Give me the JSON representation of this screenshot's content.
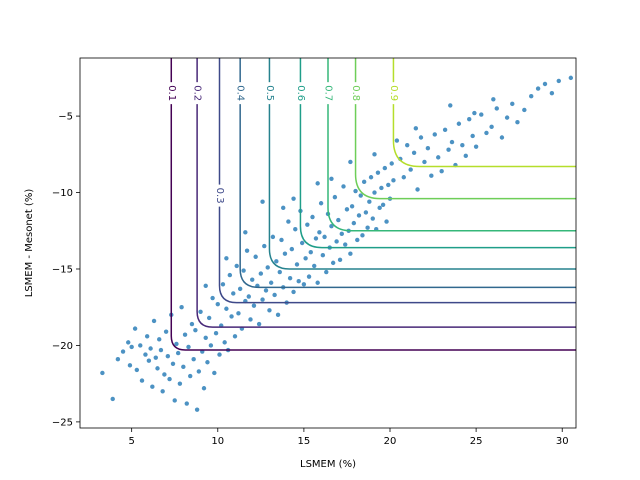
{
  "chart_data": {
    "type": "scatter",
    "xlabel": "LSMEM (%)",
    "ylabel": "LSMEM - Mesonet (%)",
    "xlim": [
      2.0,
      30.8
    ],
    "ylim": [
      -25.4,
      -1.2
    ],
    "xticks": [
      5,
      10,
      15,
      20,
      25,
      30
    ],
    "yticks": [
      -25,
      -20,
      -15,
      -10,
      -5
    ],
    "point_color": "#1f77b4",
    "contours": [
      {
        "level": "0.1",
        "color": "#440154",
        "x_asym": 7.3,
        "y_asym": -20.3,
        "label_y": -3.5
      },
      {
        "level": "0.2",
        "color": "#482878",
        "x_asym": 8.8,
        "y_asym": -18.8,
        "label_y": -3.5
      },
      {
        "level": "0.3",
        "color": "#3e4989",
        "x_asym": 10.1,
        "y_asym": -17.2,
        "label_y": -10.2
      },
      {
        "level": "0.4",
        "color": "#31688e",
        "x_asym": 11.3,
        "y_asym": -16.2,
        "label_y": -3.5
      },
      {
        "level": "0.5",
        "color": "#26828e",
        "x_asym": 13.0,
        "y_asym": -15.0,
        "label_y": -3.5
      },
      {
        "level": "0.6",
        "color": "#1f9e89",
        "x_asym": 14.8,
        "y_asym": -13.6,
        "label_y": -3.5
      },
      {
        "level": "0.7",
        "color": "#35b779",
        "x_asym": 16.4,
        "y_asym": -12.5,
        "label_y": -3.5
      },
      {
        "level": "0.8",
        "color": "#6ece58",
        "x_asym": 18.0,
        "y_asym": -10.4,
        "label_y": -3.5
      },
      {
        "level": "0.9",
        "color": "#b5de2b",
        "x_asym": 20.2,
        "y_asym": -8.3,
        "label_y": -3.5
      }
    ],
    "points": [
      [
        3.3,
        -21.8
      ],
      [
        3.9,
        -23.5
      ],
      [
        4.2,
        -20.9
      ],
      [
        4.5,
        -20.4
      ],
      [
        4.8,
        -19.8
      ],
      [
        4.9,
        -21.3
      ],
      [
        5.0,
        -20.1
      ],
      [
        5.2,
        -18.9
      ],
      [
        5.3,
        -21.6
      ],
      [
        5.5,
        -20.0
      ],
      [
        5.6,
        -22.3
      ],
      [
        5.8,
        -20.6
      ],
      [
        5.9,
        -19.4
      ],
      [
        6.0,
        -21.0
      ],
      [
        6.1,
        -20.2
      ],
      [
        6.2,
        -22.7
      ],
      [
        6.3,
        -18.4
      ],
      [
        6.4,
        -20.8
      ],
      [
        6.5,
        -21.5
      ],
      [
        6.6,
        -19.6
      ],
      [
        6.7,
        -20.3
      ],
      [
        6.8,
        -23.0
      ],
      [
        6.9,
        -21.9
      ],
      [
        7.0,
        -19.1
      ],
      [
        7.1,
        -20.7
      ],
      [
        7.2,
        -22.2
      ],
      [
        7.3,
        -18.0
      ],
      [
        7.4,
        -21.2
      ],
      [
        7.5,
        -23.6
      ],
      [
        7.6,
        -19.9
      ],
      [
        7.7,
        -20.5
      ],
      [
        7.8,
        -22.5
      ],
      [
        7.9,
        -17.5
      ],
      [
        8.0,
        -21.4
      ],
      [
        8.1,
        -19.3
      ],
      [
        8.2,
        -23.8
      ],
      [
        8.3,
        -20.1
      ],
      [
        8.4,
        -22.0
      ],
      [
        8.5,
        -18.6
      ],
      [
        8.6,
        -20.9
      ],
      [
        8.7,
        -19.0
      ],
      [
        8.8,
        -24.2
      ],
      [
        8.9,
        -21.7
      ],
      [
        9.0,
        -17.8
      ],
      [
        9.1,
        -20.4
      ],
      [
        9.2,
        -22.8
      ],
      [
        9.3,
        -19.5
      ],
      [
        9.4,
        -21.1
      ],
      [
        9.5,
        -18.2
      ],
      [
        9.6,
        -20.0
      ],
      [
        9.7,
        -16.9
      ],
      [
        9.8,
        -21.8
      ],
      [
        9.9,
        -19.2
      ],
      [
        10.0,
        -17.3
      ],
      [
        10.1,
        -20.6
      ],
      [
        10.2,
        -18.7
      ],
      [
        10.3,
        -16.0
      ],
      [
        10.4,
        -19.8
      ],
      [
        10.5,
        -17.6
      ],
      [
        10.6,
        -20.3
      ],
      [
        10.7,
        -15.4
      ],
      [
        10.8,
        -18.1
      ],
      [
        10.9,
        -16.6
      ],
      [
        11.0,
        -19.4
      ],
      [
        11.1,
        -14.8
      ],
      [
        11.2,
        -17.9
      ],
      [
        11.3,
        -16.3
      ],
      [
        11.4,
        -18.9
      ],
      [
        11.5,
        -15.1
      ],
      [
        11.6,
        -17.1
      ],
      [
        11.7,
        -13.8
      ],
      [
        11.8,
        -16.8
      ],
      [
        11.9,
        -18.3
      ],
      [
        12.0,
        -15.7
      ],
      [
        12.1,
        -17.4
      ],
      [
        12.2,
        -14.2
      ],
      [
        12.3,
        -16.1
      ],
      [
        12.4,
        -18.6
      ],
      [
        12.5,
        -15.3
      ],
      [
        12.6,
        -17.0
      ],
      [
        12.7,
        -13.5
      ],
      [
        12.8,
        -16.4
      ],
      [
        12.9,
        -14.9
      ],
      [
        13.0,
        -17.7
      ],
      [
        13.1,
        -15.9
      ],
      [
        13.2,
        -12.9
      ],
      [
        13.3,
        -16.7
      ],
      [
        13.4,
        -14.5
      ],
      [
        13.5,
        -18.0
      ],
      [
        13.6,
        -15.2
      ],
      [
        13.7,
        -13.1
      ],
      [
        13.8,
        -16.2
      ],
      [
        13.9,
        -14.0
      ],
      [
        14.0,
        -17.2
      ],
      [
        14.1,
        -11.9
      ],
      [
        14.2,
        -15.6
      ],
      [
        14.3,
        -13.7
      ],
      [
        14.4,
        -16.5
      ],
      [
        14.5,
        -12.4
      ],
      [
        14.6,
        -14.7
      ],
      [
        14.7,
        -15.8
      ],
      [
        14.8,
        -11.2
      ],
      [
        14.9,
        -13.3
      ],
      [
        15.0,
        -16.0
      ],
      [
        15.1,
        -14.3
      ],
      [
        15.2,
        -12.1
      ],
      [
        15.3,
        -15.5
      ],
      [
        15.4,
        -13.9
      ],
      [
        15.5,
        -11.6
      ],
      [
        15.6,
        -14.8
      ],
      [
        15.7,
        -13.0
      ],
      [
        15.8,
        -15.9
      ],
      [
        15.9,
        -12.6
      ],
      [
        16.0,
        -10.7
      ],
      [
        16.1,
        -14.1
      ],
      [
        16.2,
        -12.9
      ],
      [
        16.3,
        -15.2
      ],
      [
        16.4,
        -11.4
      ],
      [
        16.5,
        -13.6
      ],
      [
        16.6,
        -12.2
      ],
      [
        16.7,
        -14.6
      ],
      [
        16.8,
        -10.3
      ],
      [
        16.9,
        -13.2
      ],
      [
        17.0,
        -11.8
      ],
      [
        17.1,
        -14.4
      ],
      [
        17.2,
        -12.7
      ],
      [
        17.3,
        -9.6
      ],
      [
        17.4,
        -13.4
      ],
      [
        17.5,
        -11.1
      ],
      [
        17.6,
        -12.5
      ],
      [
        17.7,
        -14.0
      ],
      [
        17.8,
        -10.9
      ],
      [
        17.9,
        -12.0
      ],
      [
        18.0,
        -9.9
      ],
      [
        18.1,
        -13.1
      ],
      [
        18.2,
        -11.5
      ],
      [
        18.3,
        -10.2
      ],
      [
        18.4,
        -12.8
      ],
      [
        18.5,
        -9.3
      ],
      [
        18.6,
        -11.3
      ],
      [
        18.7,
        -12.3
      ],
      [
        18.8,
        -10.6
      ],
      [
        18.9,
        -9.0
      ],
      [
        19.0,
        -11.7
      ],
      [
        19.1,
        -10.0
      ],
      [
        19.2,
        -12.4
      ],
      [
        19.3,
        -8.7
      ],
      [
        19.4,
        -11.0
      ],
      [
        19.5,
        -9.7
      ],
      [
        19.6,
        -10.8
      ],
      [
        19.7,
        -8.4
      ],
      [
        19.8,
        -11.9
      ],
      [
        19.9,
        -9.5
      ],
      [
        20.0,
        -10.4
      ],
      [
        20.1,
        -8.1
      ],
      [
        20.2,
        -9.2
      ],
      [
        20.4,
        -6.6
      ],
      [
        20.6,
        -7.8
      ],
      [
        20.8,
        -9.0
      ],
      [
        21.0,
        -6.9
      ],
      [
        21.2,
        -8.5
      ],
      [
        21.4,
        -7.4
      ],
      [
        21.6,
        -9.8
      ],
      [
        21.8,
        -6.4
      ],
      [
        22.0,
        -8.0
      ],
      [
        22.2,
        -7.1
      ],
      [
        22.4,
        -8.9
      ],
      [
        22.6,
        -6.2
      ],
      [
        22.8,
        -7.7
      ],
      [
        23.0,
        -8.6
      ],
      [
        23.2,
        -5.9
      ],
      [
        23.4,
        -7.2
      ],
      [
        23.6,
        -6.7
      ],
      [
        23.8,
        -8.2
      ],
      [
        24.0,
        -5.5
      ],
      [
        24.2,
        -6.9
      ],
      [
        24.4,
        -7.6
      ],
      [
        24.6,
        -5.2
      ],
      [
        24.8,
        -6.3
      ],
      [
        25.0,
        -7.0
      ],
      [
        25.3,
        -4.9
      ],
      [
        25.6,
        -6.1
      ],
      [
        25.9,
        -5.7
      ],
      [
        26.2,
        -4.5
      ],
      [
        26.5,
        -6.4
      ],
      [
        26.8,
        -5.1
      ],
      [
        27.1,
        -4.2
      ],
      [
        27.4,
        -5.4
      ],
      [
        27.8,
        -4.6
      ],
      [
        28.2,
        -3.7
      ],
      [
        28.6,
        -3.2
      ],
      [
        29.0,
        -2.9
      ],
      [
        29.4,
        -3.5
      ],
      [
        29.8,
        -2.7
      ],
      [
        30.5,
        -2.5
      ],
      [
        28.1,
        -0.9
      ],
      [
        26.0,
        -3.9
      ],
      [
        23.5,
        -4.3
      ],
      [
        24.9,
        -4.8
      ],
      [
        21.5,
        -5.8
      ],
      [
        12.6,
        -10.6
      ],
      [
        13.8,
        -11.0
      ],
      [
        15.8,
        -9.4
      ],
      [
        16.6,
        -9.1
      ],
      [
        17.7,
        -8.0
      ],
      [
        19.1,
        -7.5
      ],
      [
        14.4,
        -10.4
      ],
      [
        11.6,
        -12.6
      ],
      [
        10.5,
        -14.3
      ],
      [
        9.3,
        -16.1
      ]
    ]
  }
}
